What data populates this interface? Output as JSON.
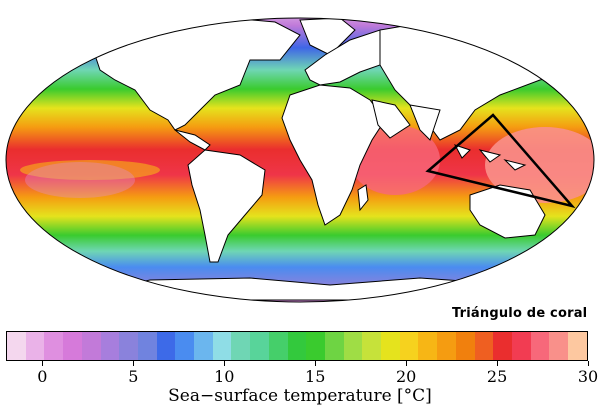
{
  "map": {
    "title": "Sea−surface temperature",
    "region_label": "Triángulo de coral",
    "projection": "mollweide",
    "land_color": "#ffffff",
    "outline_color": "#000000",
    "triangle_color": "#000000"
  },
  "colorbar": {
    "title": "Sea−surface temperature [°C]",
    "range": [
      -2,
      30
    ],
    "ticks": [
      "0",
      "5",
      "10",
      "15",
      "20",
      "25",
      "30"
    ],
    "tick_values": [
      0,
      5,
      10,
      15,
      20,
      25,
      30
    ],
    "colors": [
      "#f4d7ee",
      "#eab2e8",
      "#df8fe0",
      "#d67ada",
      "#c27ad9",
      "#a77edd",
      "#8a82dc",
      "#7083df",
      "#3d6ae8",
      "#4a8cf0",
      "#6bb6ee",
      "#8fdde6",
      "#6fd6b4",
      "#58d49a",
      "#45cf6a",
      "#33c93d",
      "#3acb2e",
      "#6ed443",
      "#9fdd45",
      "#c6e23a",
      "#e5e31d",
      "#f6d21e",
      "#f7b615",
      "#f59c11",
      "#f1800d",
      "#ef5f21",
      "#ea2e2e",
      "#f23c52",
      "#f7687a",
      "#f9908a",
      "#fdc8a0"
    ]
  }
}
